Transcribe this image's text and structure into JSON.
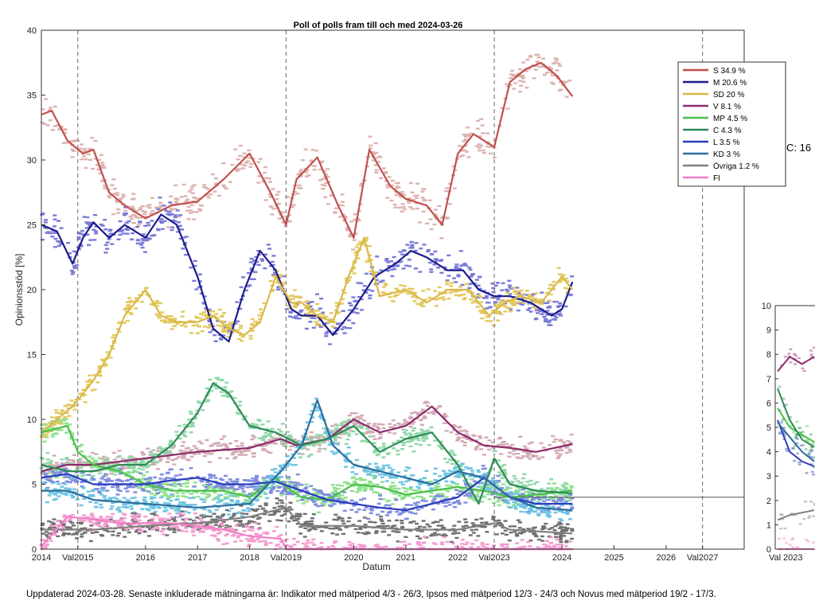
{
  "title": "Poll of polls fram till och med 2024-03-26",
  "footnote": "Uppdaterad 2024-03-28. Senaste inkluderade mätningarna är: Indikator med mätperiod 4/3 - 26/3, Ipsos med mätperiod 12/3 - 24/3 och Novus med mätperiod 19/2 - 17/3.",
  "side_label": "C: 16",
  "chart_data": [
    {
      "type": "line",
      "title": "Poll of polls fram till och med 2024-03-26",
      "xlabel": "Datum",
      "ylabel": "Opinionsstöd [%]",
      "xlim": [
        2014.0,
        2027.5
      ],
      "ylim": [
        0,
        40
      ],
      "x_ticks": [
        2014,
        2014.7,
        2016,
        2017,
        2018,
        2018.7,
        2020,
        2021,
        2022,
        2022.7,
        2024,
        2025,
        2026,
        2026.7
      ],
      "x_tick_labels": [
        "2014",
        "Val2015",
        "2016",
        "2017",
        "2018",
        "Val2019",
        "2020",
        "2021",
        "2022",
        "Val2023",
        "2024",
        "2025",
        "2026",
        "Val2027"
      ],
      "y_ticks": [
        0,
        5,
        10,
        15,
        20,
        25,
        30,
        35,
        40
      ],
      "election_lines": [
        2014.7,
        2018.7,
        2022.7,
        2026.7
      ],
      "reference_line": {
        "y": 4,
        "from": 2022.7,
        "to": 2027.5
      },
      "grid": false,
      "legend_position": "top-right",
      "series": [
        {
          "name": "S 34.9 %",
          "color": "#c0504d",
          "dot_color": "#dcb4b0",
          "x": [
            2014.0,
            2014.2,
            2014.5,
            2014.8,
            2015.0,
            2015.3,
            2015.6,
            2016.0,
            2016.5,
            2017.0,
            2017.5,
            2018.0,
            2018.4,
            2018.7,
            2018.9,
            2019.3,
            2019.7,
            2020.0,
            2020.3,
            2020.7,
            2021.0,
            2021.4,
            2021.7,
            2022.0,
            2022.3,
            2022.7,
            2023.0,
            2023.3,
            2023.6,
            2023.9,
            2024.2
          ],
          "y": [
            33.5,
            33.8,
            31.5,
            30.5,
            30.8,
            27.5,
            26.5,
            25.5,
            26.5,
            26.8,
            28.5,
            30.5,
            27.5,
            25.0,
            28.5,
            30.2,
            26.5,
            24.0,
            30.8,
            28.0,
            27.0,
            26.5,
            25.0,
            30.5,
            32.0,
            31.0,
            36.0,
            37.0,
            37.5,
            36.5,
            34.9
          ]
        },
        {
          "name": "M 20.6 %",
          "color": "#1c1c8c",
          "dot_color": "#7a7ad8",
          "x": [
            2014.0,
            2014.3,
            2014.6,
            2014.8,
            2015.0,
            2015.3,
            2015.6,
            2016.0,
            2016.3,
            2016.6,
            2017.0,
            2017.3,
            2017.6,
            2017.9,
            2018.2,
            2018.5,
            2018.8,
            2019.0,
            2019.3,
            2019.6,
            2020.0,
            2020.4,
            2020.8,
            2021.1,
            2021.4,
            2021.8,
            2022.1,
            2022.4,
            2022.7,
            2023.0,
            2023.4,
            2023.8,
            2024.0,
            2024.2
          ],
          "y": [
            25.0,
            24.5,
            22.0,
            24.0,
            25.2,
            24.0,
            25.0,
            24.0,
            25.8,
            25.0,
            21.0,
            17.0,
            16.0,
            20.0,
            23.0,
            21.5,
            18.5,
            18.0,
            18.0,
            16.5,
            18.5,
            21.0,
            22.0,
            23.0,
            22.5,
            21.5,
            21.5,
            20.0,
            19.5,
            19.5,
            19.0,
            18.0,
            18.5,
            20.6
          ]
        },
        {
          "name": "SD 20 %",
          "color": "#d9b84a",
          "dot_color": "#e3c95c",
          "x": [
            2014.0,
            2014.3,
            2014.6,
            2014.8,
            2015.0,
            2015.3,
            2015.6,
            2016.0,
            2016.3,
            2016.6,
            2017.0,
            2017.3,
            2017.6,
            2017.9,
            2018.2,
            2018.5,
            2018.8,
            2019.0,
            2019.3,
            2019.6,
            2019.9,
            2020.2,
            2020.5,
            2021.0,
            2021.4,
            2021.8,
            2022.2,
            2022.6,
            2022.9,
            2023.2,
            2023.6,
            2024.0,
            2024.2
          ],
          "y": [
            9.0,
            10.0,
            11.0,
            12.0,
            13.0,
            15.0,
            18.0,
            20.0,
            18.0,
            17.5,
            17.5,
            18.0,
            17.0,
            16.5,
            17.5,
            21.0,
            19.0,
            19.0,
            18.0,
            17.5,
            21.0,
            24.0,
            19.5,
            20.0,
            19.0,
            20.0,
            20.0,
            18.0,
            19.0,
            19.5,
            19.0,
            21.0,
            20.0
          ]
        },
        {
          "name": "V 8.1 %",
          "color": "#8c2b6a",
          "dot_color": "#d3aab5",
          "x": [
            2014.0,
            2014.5,
            2015.0,
            2016.0,
            2017.0,
            2018.0,
            2018.6,
            2018.9,
            2019.5,
            2020.0,
            2020.5,
            2021.0,
            2021.5,
            2022.0,
            2022.5,
            2023.0,
            2023.5,
            2024.2
          ],
          "y": [
            6.0,
            6.5,
            6.5,
            7.0,
            7.5,
            7.8,
            8.5,
            8.0,
            8.5,
            10.0,
            9.0,
            9.5,
            11.0,
            9.0,
            8.0,
            7.8,
            7.5,
            8.1
          ]
        },
        {
          "name": "MP 4.5 %",
          "color": "#4ac04a",
          "dot_color": "#8fe08f",
          "x": [
            2014.0,
            2014.5,
            2014.7,
            2015.0,
            2015.5,
            2016.0,
            2016.5,
            2017.0,
            2017.5,
            2018.0,
            2018.5,
            2018.8,
            2019.0,
            2019.5,
            2020.0,
            2020.5,
            2021.0,
            2021.5,
            2022.0,
            2022.5,
            2023.0,
            2023.5,
            2024.2
          ],
          "y": [
            9.0,
            9.5,
            7.5,
            6.5,
            6.0,
            5.0,
            4.5,
            4.5,
            4.5,
            4.0,
            5.5,
            4.5,
            4.0,
            3.8,
            5.0,
            4.8,
            4.2,
            4.5,
            4.8,
            4.5,
            4.0,
            4.2,
            4.5
          ]
        },
        {
          "name": "C 4.3 %",
          "color": "#2e8b57",
          "dot_color": "#8fd8a8",
          "x": [
            2014.0,
            2014.5,
            2015.0,
            2015.5,
            2016.0,
            2016.5,
            2017.0,
            2017.3,
            2017.6,
            2018.0,
            2018.5,
            2019.0,
            2019.5,
            2020.0,
            2020.5,
            2021.0,
            2021.5,
            2022.0,
            2022.4,
            2022.7,
            2023.0,
            2023.5,
            2024.2
          ],
          "y": [
            6.5,
            6.0,
            6.0,
            6.5,
            6.5,
            8.0,
            10.5,
            12.8,
            12.0,
            9.5,
            9.0,
            8.0,
            8.5,
            9.5,
            7.5,
            8.5,
            9.0,
            6.5,
            3.5,
            7.0,
            5.0,
            4.5,
            4.3
          ]
        },
        {
          "name": "L 3.5 %",
          "color": "#2b3dbb",
          "dot_color": "#7f8ce0",
          "x": [
            2014.0,
            2014.5,
            2015.0,
            2015.5,
            2016.0,
            2016.5,
            2017.0,
            2017.5,
            2018.0,
            2018.5,
            2019.0,
            2019.5,
            2020.0,
            2020.5,
            2021.0,
            2021.5,
            2022.0,
            2022.5,
            2023.0,
            2023.5,
            2024.2
          ],
          "y": [
            5.5,
            5.8,
            5.0,
            5.0,
            5.0,
            5.3,
            5.5,
            5.0,
            5.0,
            5.2,
            4.5,
            3.8,
            3.5,
            3.2,
            3.0,
            3.5,
            4.0,
            5.5,
            4.0,
            3.5,
            3.5
          ]
        },
        {
          "name": "KD 3 %",
          "color": "#2d6d9c",
          "dot_color": "#6ec5e3",
          "x": [
            2014.0,
            2014.5,
            2015.0,
            2016.0,
            2017.0,
            2018.0,
            2018.6,
            2019.0,
            2019.3,
            2019.6,
            2020.0,
            2020.5,
            2021.0,
            2021.5,
            2022.0,
            2022.5,
            2023.0,
            2023.5,
            2024.2
          ],
          "y": [
            4.5,
            4.5,
            3.8,
            3.5,
            3.2,
            3.5,
            6.0,
            8.0,
            11.5,
            8.0,
            6.5,
            6.0,
            5.5,
            5.0,
            6.0,
            5.5,
            4.0,
            3.2,
            3.0
          ]
        },
        {
          "name": "Övriga 1.2 %",
          "color": "#808080",
          "dot_color": "#707070",
          "x": [
            2014.0,
            2015.0,
            2016.0,
            2017.0,
            2018.0,
            2018.7,
            2019.0,
            2020.0,
            2021.0,
            2022.0,
            2022.7,
            2023.0,
            2024.2
          ],
          "y": [
            1.5,
            1.5,
            1.8,
            2.0,
            2.5,
            3.2,
            1.8,
            1.8,
            1.5,
            1.5,
            2.0,
            1.5,
            1.2
          ]
        },
        {
          "name": "FI",
          "color": "#f27fc3",
          "dot_color": "#f59bd1",
          "x": [
            2014.0,
            2014.5,
            2015.0,
            2015.5,
            2016.0,
            2016.5,
            2017.0,
            2017.5,
            2018.0,
            2018.6,
            2018.7,
            2024.2
          ],
          "y": [
            0.2,
            2.5,
            2.3,
            2.0,
            2.0,
            2.0,
            1.8,
            1.5,
            1.0,
            0.8,
            0.0,
            0.0
          ]
        }
      ]
    },
    {
      "type": "line",
      "ylim": [
        0,
        10
      ],
      "y_ticks": [
        0,
        1,
        2,
        3,
        4,
        5,
        6,
        7,
        8,
        9,
        10
      ],
      "x_tick_labels": [
        "Val",
        "2023"
      ],
      "series": [
        {
          "name": "V",
          "color": "#8c2b6a",
          "y": [
            7.3,
            7.9,
            7.6,
            7.9
          ]
        },
        {
          "name": "MP",
          "color": "#4ac04a",
          "y": [
            5.8,
            5.0,
            4.7,
            4.4
          ]
        },
        {
          "name": "C",
          "color": "#2e8b57",
          "y": [
            6.6,
            5.3,
            4.5,
            4.2
          ]
        },
        {
          "name": "L",
          "color": "#2b3dbb",
          "y": [
            5.3,
            4.0,
            3.6,
            3.4
          ]
        },
        {
          "name": "KD",
          "color": "#2d6d9c",
          "y": [
            5.2,
            4.6,
            4.0,
            3.6
          ]
        },
        {
          "name": "Övriga",
          "color": "#808080",
          "y": [
            1.2,
            1.4,
            1.5,
            1.6
          ]
        },
        {
          "name": "FI",
          "color": "#f27fc3",
          "y": [
            0.0,
            0.0,
            0.0,
            0.0
          ]
        }
      ]
    }
  ]
}
